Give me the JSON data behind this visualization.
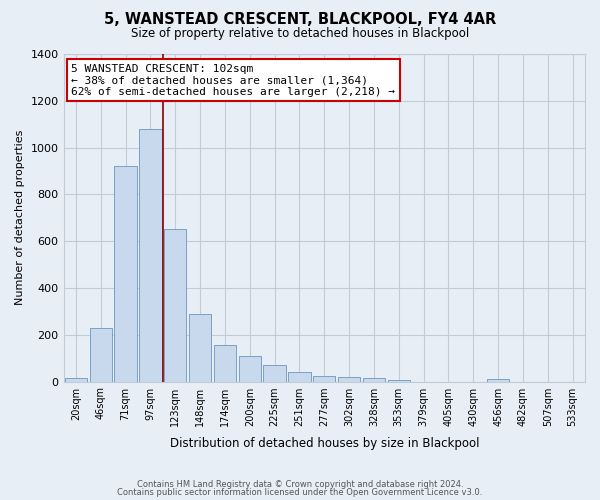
{
  "title": "5, WANSTEAD CRESCENT, BLACKPOOL, FY4 4AR",
  "subtitle": "Size of property relative to detached houses in Blackpool",
  "xlabel": "Distribution of detached houses by size in Blackpool",
  "ylabel": "Number of detached properties",
  "bar_labels": [
    "20sqm",
    "46sqm",
    "71sqm",
    "97sqm",
    "123sqm",
    "148sqm",
    "174sqm",
    "200sqm",
    "225sqm",
    "251sqm",
    "277sqm",
    "302sqm",
    "328sqm",
    "353sqm",
    "379sqm",
    "405sqm",
    "430sqm",
    "456sqm",
    "482sqm",
    "507sqm",
    "533sqm"
  ],
  "bar_values": [
    15,
    230,
    920,
    1080,
    650,
    290,
    158,
    108,
    72,
    40,
    25,
    20,
    13,
    8,
    0,
    0,
    0,
    10,
    0,
    0,
    0
  ],
  "bar_color": "#c8d8ed",
  "bar_edge_color": "#7aa0c4",
  "vline_color": "#8b0000",
  "annotation_title": "5 WANSTEAD CRESCENT: 102sqm",
  "annotation_line1": "← 38% of detached houses are smaller (1,364)",
  "annotation_line2": "62% of semi-detached houses are larger (2,218) →",
  "annotation_box_color": "#ffffff",
  "annotation_box_edge": "#cc0000",
  "ylim": [
    0,
    1400
  ],
  "yticks": [
    0,
    200,
    400,
    600,
    800,
    1000,
    1200,
    1400
  ],
  "footer1": "Contains HM Land Registry data © Crown copyright and database right 2024.",
  "footer2": "Contains public sector information licensed under the Open Government Licence v3.0.",
  "background_color": "#e8eef5",
  "plot_background": "#e8eef5",
  "grid_color": "#c0ccd8"
}
